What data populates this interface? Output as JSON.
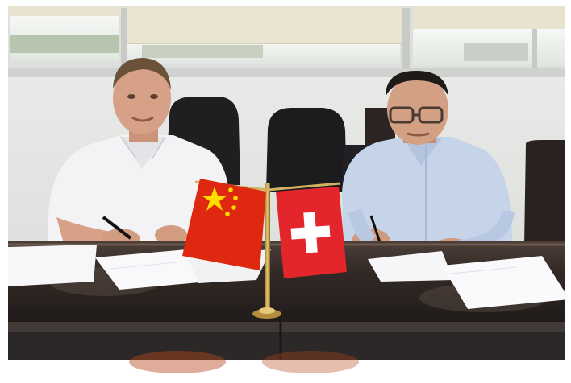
{
  "photo": {
    "subject": "",
    "colors": {
      "wall": "#e4e5e3",
      "window_glass": "#eef2ee",
      "curtain": "#e8e4d2",
      "table": "#2c2522",
      "table_highlight": "#5a4c45",
      "china_red": "#de2910",
      "china_yellow": "#ffde00",
      "swiss_red": "#e3262b",
      "shirt_left": "#f4f4f6",
      "shirt_right": "#c6d4ea",
      "skin": "#d8a88a",
      "chair": "#1e1e21",
      "flagpole_gold": "#c9a24a",
      "paper": "#fafafa"
    },
    "elements": [
      "window-blinds",
      "office-chairs",
      "man-left-white-shirt",
      "man-right-blue-shirt",
      "china-flag",
      "switzerland-flag",
      "documents-on-table",
      "conference-table"
    ]
  }
}
